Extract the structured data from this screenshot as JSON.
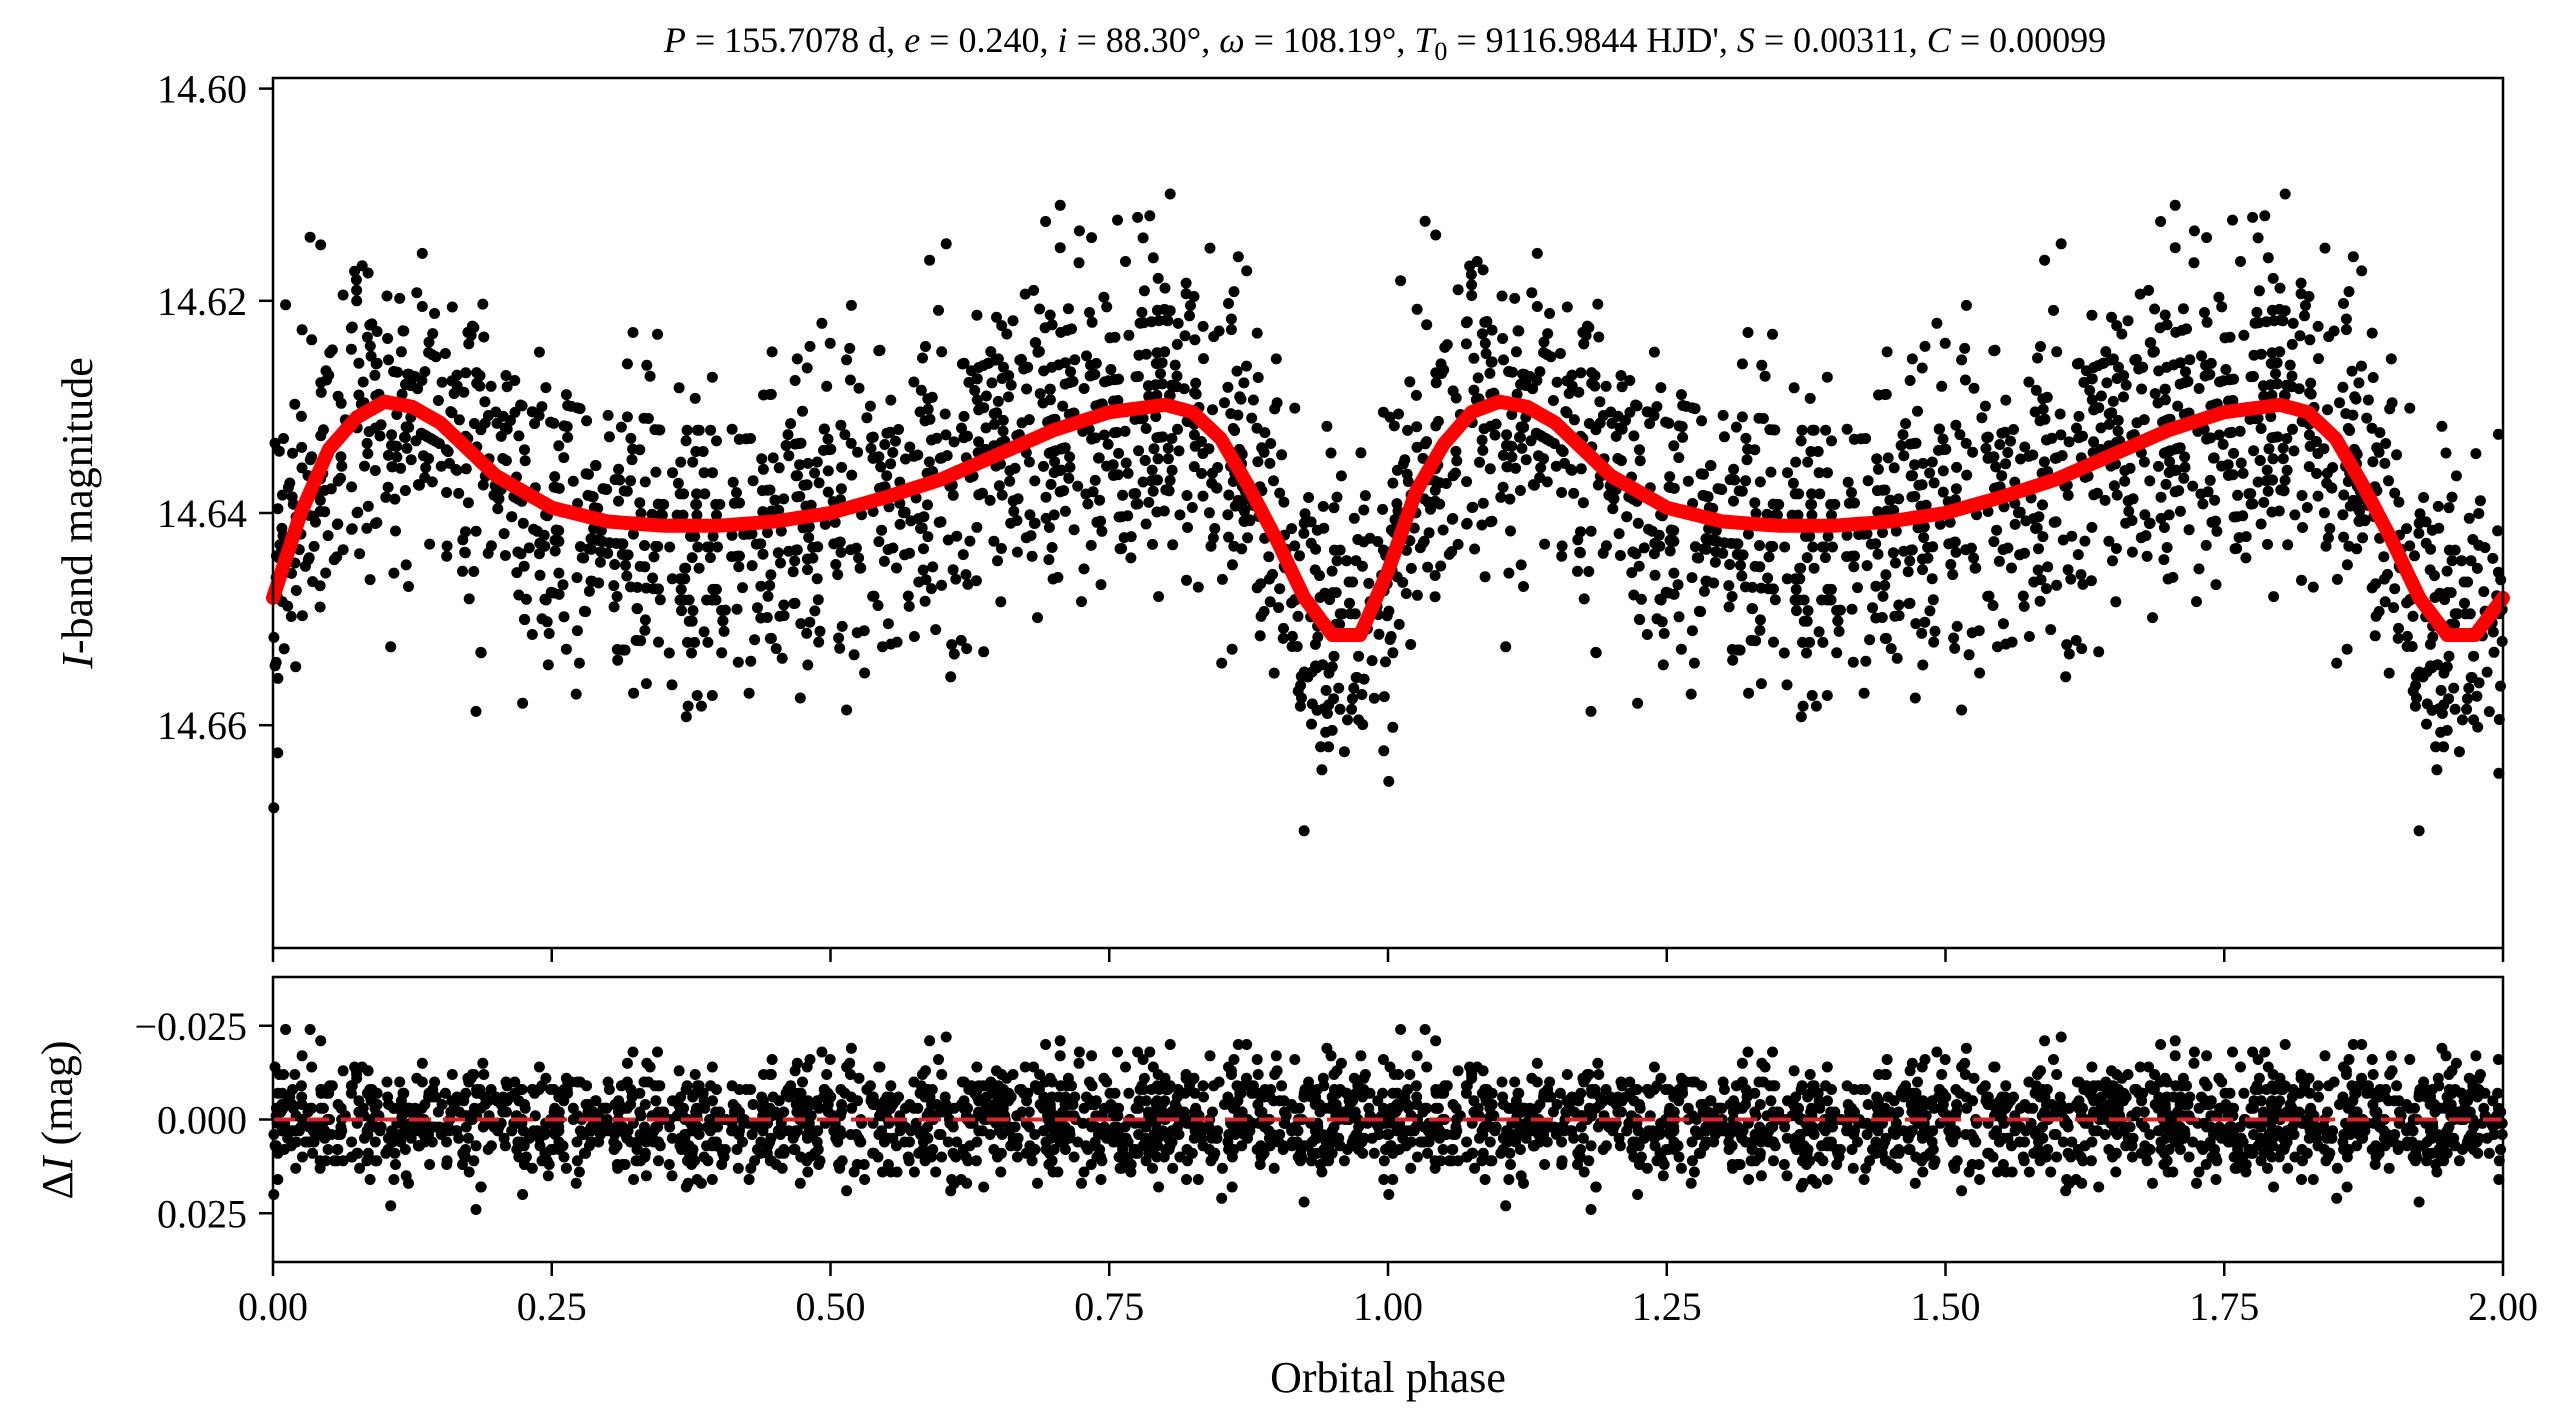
{
  "figure": {
    "title": "P = 155.7078 d, e = 0.240, i = 88.30°, ω = 108.19°, T0 = 9116.9844 HJD', S = 0.00311, C = 0.00099",
    "title_parts": {
      "p_sym": "P",
      "p_val": " = 155.7078 d, ",
      "e_sym": "e",
      "e_val": " = 0.240, ",
      "i_sym": "i",
      "i_val": " = 88.30°, ",
      "w_sym": "ω",
      "w_val": " = 108.19°, ",
      "t_sym": "T",
      "t_sub": "0",
      "t_val": " = 9116.9844 HJD', ",
      "s_sym": "S",
      "s_val": " = 0.00311, ",
      "c_sym": "C",
      "c_val": " = 0.00099"
    },
    "colors": {
      "points": "#000000",
      "model": "#ff0000",
      "residual_zero": "#dd2222"
    }
  },
  "chart_data": [
    {
      "type": "scatter",
      "panel": "top",
      "title": "P = 155.7078 d, e = 0.240, i = 88.30°, ω = 108.19°, T0 = 9116.9844 HJD', S = 0.00311, C = 0.00099",
      "xlabel": "",
      "ylabel": "I-band magnitude",
      "ylabel_parts": {
        "italic": "I",
        "rest": "-band magnitude"
      },
      "xlim": [
        0.0,
        2.0
      ],
      "ylim": [
        14.681,
        14.599
      ],
      "y_inverted": true,
      "yticks": [
        "14.60",
        "14.62",
        "14.64",
        "14.66"
      ],
      "ytick_values": [
        14.6,
        14.62,
        14.64,
        14.66
      ],
      "xticks_values": [
        0.0,
        0.25,
        0.5,
        0.75,
        1.0,
        1.25,
        1.5,
        1.75,
        2.0
      ],
      "grid": false,
      "series": [
        {
          "kind": "model-curve",
          "x": [
            0.0,
            0.025,
            0.05,
            0.075,
            0.1,
            0.125,
            0.15,
            0.175,
            0.2,
            0.25,
            0.3,
            0.35,
            0.4,
            0.45,
            0.5,
            0.55,
            0.6,
            0.65,
            0.7,
            0.75,
            0.8,
            0.825,
            0.85,
            0.875,
            0.9,
            0.925,
            0.95,
            0.975,
            1.0,
            1.025,
            1.05,
            1.075,
            1.1,
            1.125,
            1.15,
            1.175,
            1.2,
            1.25,
            1.3,
            1.35,
            1.4,
            1.45,
            1.5,
            1.55,
            1.6,
            1.65,
            1.7,
            1.75,
            1.8,
            1.825,
            1.85,
            1.875,
            1.9,
            1.925,
            1.95,
            1.975,
            2.0
          ],
          "y": [
            14.648,
            14.64,
            14.634,
            14.631,
            14.6295,
            14.63,
            14.6315,
            14.634,
            14.6365,
            14.6395,
            14.6408,
            14.6412,
            14.6412,
            14.6408,
            14.64,
            14.6385,
            14.6368,
            14.6345,
            14.6322,
            14.6305,
            14.6298,
            14.6305,
            14.633,
            14.6375,
            14.6425,
            14.648,
            14.6515,
            14.6515,
            14.6455,
            14.638,
            14.6335,
            14.6305,
            14.6295,
            14.63,
            14.6315,
            14.634,
            14.6365,
            14.6395,
            14.6408,
            14.6412,
            14.6412,
            14.6408,
            14.64,
            14.6385,
            14.6368,
            14.6345,
            14.6322,
            14.6305,
            14.6298,
            14.6305,
            14.633,
            14.6375,
            14.6425,
            14.648,
            14.6515,
            14.6515,
            14.648
          ]
        },
        {
          "kind": "observations",
          "description_source": "scatter of ~3000 points around model with ~0.008 mag scatter",
          "n_points_per_cycle": 1500,
          "scatter_sigma_mag": 0.0075
        }
      ]
    },
    {
      "type": "scatter",
      "panel": "bottom",
      "xlabel": "Orbital phase",
      "ylabel": "ΔI (mag)",
      "ylabel_parts": {
        "delta": "Δ",
        "italic": "I",
        "rest": " (mag)"
      },
      "xlim": [
        0.0,
        2.0
      ],
      "ylim": [
        0.038,
        -0.038
      ],
      "y_inverted": true,
      "xticks": [
        "0.00",
        "0.25",
        "0.50",
        "0.75",
        "1.00",
        "1.25",
        "1.50",
        "1.75",
        "2.00"
      ],
      "xtick_values": [
        0.0,
        0.25,
        0.5,
        0.75,
        1.0,
        1.25,
        1.5,
        1.75,
        2.0
      ],
      "yticks": [
        "−0.025",
        "0.000",
        "0.025"
      ],
      "ytick_values": [
        -0.025,
        0.0,
        0.025
      ],
      "grid": false,
      "reference_line": {
        "y": 0.0,
        "style": "dashed"
      }
    }
  ]
}
